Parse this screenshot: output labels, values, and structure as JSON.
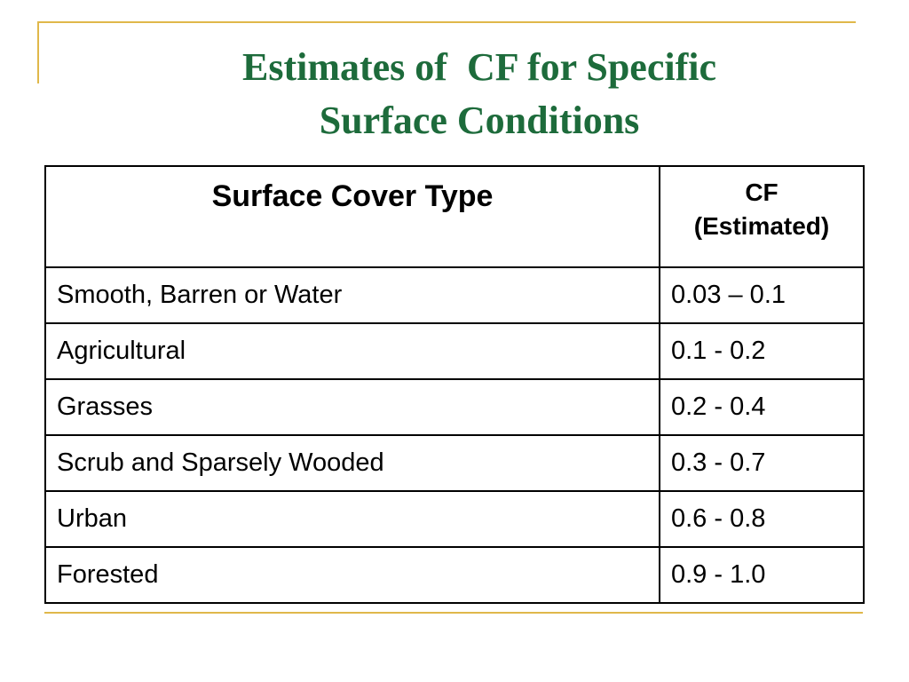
{
  "title": [
    "Estimates of  CF for Specific",
    "Surface Conditions"
  ],
  "table": {
    "header": [
      [
        "Surface Cover Type"
      ],
      [
        "CF",
        "(Estimated)"
      ]
    ],
    "rows": [
      [
        "Smooth, Barren or Water",
        "0.03 – 0.1"
      ],
      [
        "Agricultural",
        "0.1 - 0.2"
      ],
      [
        "Grasses",
        "0.2 - 0.4"
      ],
      [
        "Scrub and Sparsely Wooded",
        "0.3 - 0.7"
      ],
      [
        "Urban",
        "0.6 - 0.8"
      ],
      [
        "Forested",
        "0.9 - 1.0"
      ]
    ]
  }
}
